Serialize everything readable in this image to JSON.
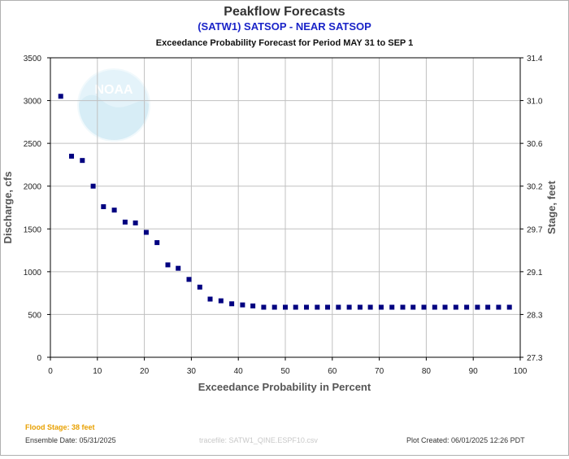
{
  "chart_data": {
    "type": "scatter",
    "title": "Peakflow Forecasts",
    "subtitle": "(SATW1) SATSOP - NEAR SATSOP",
    "period_caption": "Exceedance Probability Forecast for Period MAY 31 to SEP 1",
    "xlabel": "Exceedance Probability in Percent",
    "ylabel": "Discharge, cfs",
    "y2label": "Stage, feet",
    "xlim": [
      0,
      100
    ],
    "ylim": [
      0,
      3500
    ],
    "x_ticks": [
      "0",
      "10",
      "20",
      "30",
      "40",
      "50",
      "60",
      "70",
      "80",
      "90",
      "100"
    ],
    "y_ticks": [
      "0",
      "500",
      "1000",
      "1500",
      "2000",
      "2500",
      "3000",
      "3500"
    ],
    "y2_ticks": [
      "27.3",
      "28.3",
      "29.1",
      "29.7",
      "30.2",
      "30.6",
      "31.0",
      "31.4"
    ],
    "grid": true,
    "marker_color": "#000080",
    "x": [
      2.2,
      4.5,
      6.8,
      9.1,
      11.3,
      13.6,
      15.9,
      18.1,
      20.4,
      22.7,
      25.0,
      27.2,
      29.5,
      31.8,
      34.0,
      36.3,
      38.6,
      40.9,
      43.1,
      45.4,
      47.7,
      50.0,
      52.2,
      54.5,
      56.8,
      59.0,
      61.3,
      63.6,
      65.9,
      68.1,
      70.4,
      72.7,
      75.0,
      77.2,
      79.5,
      81.8,
      84.0,
      86.3,
      88.6,
      90.9,
      93.1,
      95.4,
      97.7
    ],
    "y": [
      3050,
      2350,
      2300,
      2000,
      1760,
      1720,
      1580,
      1570,
      1460,
      1340,
      1080,
      1040,
      910,
      820,
      680,
      660,
      625,
      612,
      600,
      585,
      585,
      585,
      585,
      585,
      585,
      585,
      585,
      585,
      585,
      585,
      585,
      585,
      585,
      585,
      585,
      585,
      585,
      585,
      585,
      585,
      585,
      585,
      585
    ]
  },
  "footer": {
    "flood_stage": "Flood Stage: 38 feet",
    "ensemble_date": "Ensemble Date: 05/31/2025",
    "tracefile": "tracefile: SATW1_QINE.ESPF10.csv",
    "plot_created": "Plot Created: 06/01/2025 12:26 PDT"
  },
  "logo": {
    "text": "NOAA"
  },
  "colors": {
    "title": "#333333",
    "subtitle": "#1a24c8",
    "flood": "#e8a000",
    "grid": "#c0c0c0",
    "logo": "#d4eef8"
  }
}
